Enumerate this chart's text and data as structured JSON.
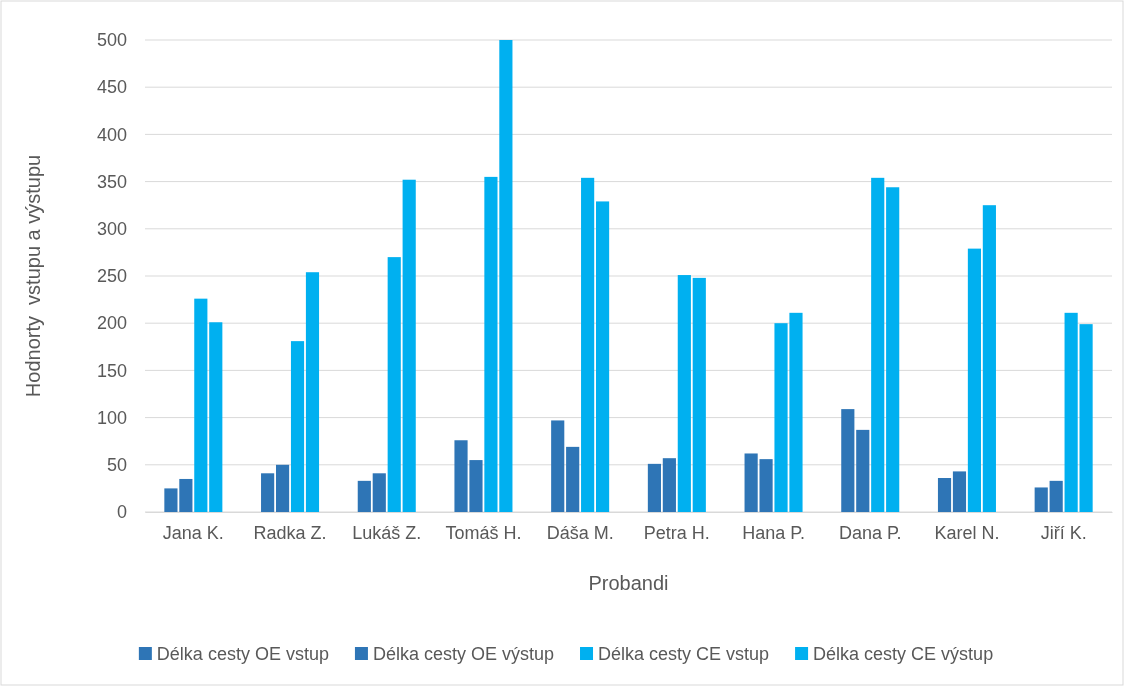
{
  "chart_data": {
    "type": "bar",
    "xlabel": "Probandi",
    "ylabel": "Hodnorty  vstupu a výstupu",
    "categories": [
      "Jana K.",
      "Radka Z.",
      "Lukáš Z.",
      "Tomáš H.",
      "Dáša M.",
      "Petra H.",
      "Hana P.",
      "Dana P.",
      "Karel N.",
      "Jiří K."
    ],
    "series": [
      {
        "name": "Délka cesty OE vstup",
        "color": "#2e75b6",
        "values": [
          25,
          41,
          33,
          76,
          97,
          51,
          62,
          109,
          36,
          26
        ]
      },
      {
        "name": "Délka cesty OE výstup",
        "color": "#2e75b6",
        "values": [
          35,
          50,
          41,
          55,
          69,
          57,
          56,
          87,
          43,
          33
        ]
      },
      {
        "name": "Délka cesty CE vstup",
        "color": "#00b0f0",
        "values": [
          226,
          181,
          270,
          355,
          354,
          251,
          200,
          354,
          279,
          211
        ]
      },
      {
        "name": "Délka cesty CE výstup",
        "color": "#00b0f0",
        "values": [
          201,
          254,
          352,
          500,
          329,
          248,
          211,
          344,
          325,
          199
        ]
      }
    ],
    "ylim": [
      0,
      500
    ],
    "yticks": [
      0,
      50,
      100,
      150,
      200,
      250,
      300,
      350,
      400,
      450,
      500
    ],
    "grid": "y",
    "legend": "bottom"
  }
}
